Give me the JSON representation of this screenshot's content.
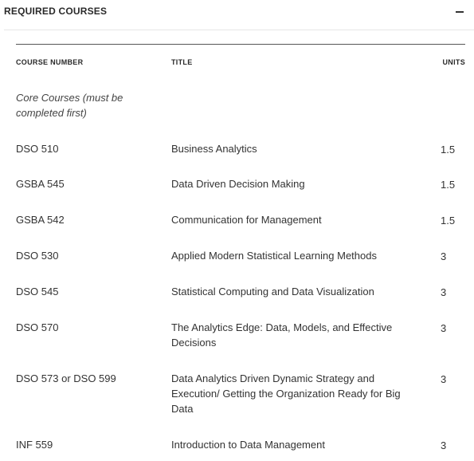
{
  "section": {
    "title": "REQUIRED COURSES"
  },
  "table": {
    "headers": {
      "course_number": "COURSE NUMBER",
      "title": "TITLE",
      "units": "UNITS"
    },
    "group_label": "Core Courses (must be completed first)",
    "rows": [
      {
        "number": "DSO 510",
        "title": "Business Analytics",
        "units": "1.5"
      },
      {
        "number": "GSBA 545",
        "title": "Data Driven Decision Making",
        "units": "1.5"
      },
      {
        "number": "GSBA 542",
        "title": "Communication for Management",
        "units": "1.5"
      },
      {
        "number": "DSO 530",
        "title": "Applied Modern Statistical Learning Methods",
        "units": "3"
      },
      {
        "number": "DSO 545",
        "title": "Statistical Computing and Data Visualization",
        "units": "3"
      },
      {
        "number": "DSO 570",
        "title": "The Analytics Edge: Data, Models, and Effective Decisions",
        "units": "3"
      },
      {
        "number": "DSO 573 or DSO 599",
        "title": "Data Analytics Driven Dynamic Strategy and Execution/ Getting the Organization Ready for Big Data",
        "units": "3"
      },
      {
        "number": "INF 559",
        "title": "Introduction to Data Management",
        "units": "3"
      }
    ]
  },
  "icons": {
    "collapse": "minus-icon"
  }
}
